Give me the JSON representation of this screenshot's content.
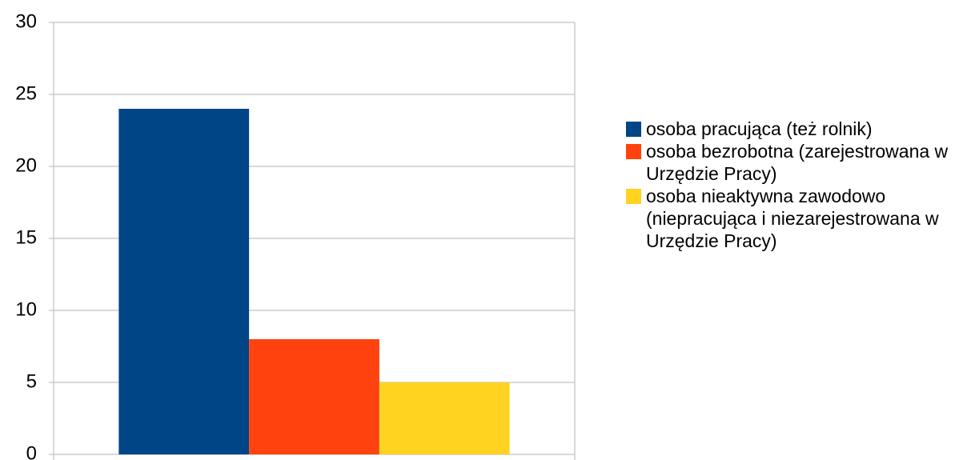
{
  "chart_data": {
    "type": "bar",
    "categories": [
      null
    ],
    "series": [
      {
        "name": "osoba pracująca (też rolnik)",
        "color": "#004586",
        "values": [
          24
        ]
      },
      {
        "name": "osoba bezrobotna (zarejestrowana w Urzędzie Pracy)",
        "color": "#ff420e",
        "values": [
          8
        ]
      },
      {
        "name": "osoba nieaktywna zawodowo (niepracująca i niezarejestrowana w Urzędzie Pracy)",
        "color": "#ffd320",
        "values": [
          5
        ]
      }
    ],
    "ylim": [
      0,
      30
    ],
    "yticks": [
      0,
      5,
      10,
      15,
      20,
      25,
      30
    ],
    "grid": true,
    "legend": "right"
  }
}
